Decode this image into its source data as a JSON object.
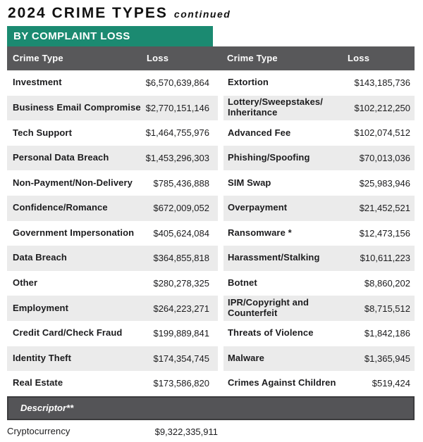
{
  "page": {
    "title": "2024 CRIME TYPES",
    "title_suffix": "continued",
    "section_banner": "BY COMPLAINT LOSS"
  },
  "colors": {
    "teal_banner": "#1B8A71",
    "header_gray": "#58585A",
    "row_alternate": "#EBEBEB",
    "descriptor_fill": "#545457",
    "descriptor_border": "#3C3C3E"
  },
  "table": {
    "headers": {
      "crime_type": "Crime Type",
      "loss": "Loss"
    },
    "left_rows": [
      {
        "name": "Investment",
        "loss": "$6,570,639,864"
      },
      {
        "name": "Business Email Compromise",
        "loss": "$2,770,151,146"
      },
      {
        "name": "Tech Support",
        "loss": "$1,464,755,976"
      },
      {
        "name": "Personal Data Breach",
        "loss": "$1,453,296,303"
      },
      {
        "name": "Non-Payment/Non-Delivery",
        "loss": "$785,436,888"
      },
      {
        "name": "Confidence/Romance",
        "loss": "$672,009,052"
      },
      {
        "name": "Government Impersonation",
        "loss": "$405,624,084"
      },
      {
        "name": "Data Breach",
        "loss": "$364,855,818"
      },
      {
        "name": "Other",
        "loss": "$280,278,325"
      },
      {
        "name": "Employment",
        "loss": "$264,223,271"
      },
      {
        "name": "Credit Card/Check Fraud",
        "loss": "$199,889,841"
      },
      {
        "name": "Identity Theft",
        "loss": "$174,354,745"
      },
      {
        "name": "Real Estate",
        "loss": "$173,586,820"
      }
    ],
    "right_rows": [
      {
        "name": "Extortion",
        "loss": "$143,185,736"
      },
      {
        "name": "Lottery/Sweepstakes/\nInheritance",
        "loss": "$102,212,250"
      },
      {
        "name": "Advanced Fee",
        "loss": "$102,074,512"
      },
      {
        "name": "Phishing/Spoofing",
        "loss": "$70,013,036"
      },
      {
        "name": "SIM Swap",
        "loss": "$25,983,946"
      },
      {
        "name": "Overpayment",
        "loss": "$21,452,521"
      },
      {
        "name": "Ransomware *",
        "loss": "$12,473,156"
      },
      {
        "name": "Harassment/Stalking",
        "loss": "$10,611,223"
      },
      {
        "name": "Botnet",
        "loss": "$8,860,202"
      },
      {
        "name": "IPR/Copyright and\nCounterfeit",
        "loss": "$8,715,512"
      },
      {
        "name": "Threats of Violence",
        "loss": "$1,842,186"
      },
      {
        "name": "Malware",
        "loss": "$1,365,945"
      },
      {
        "name": "Crimes Against Children",
        "loss": "$519,424"
      }
    ],
    "descriptor": {
      "label": "Descriptor**",
      "rows": [
        {
          "name": "Cryptocurrency",
          "loss": "$9,322,335,911"
        }
      ]
    }
  }
}
